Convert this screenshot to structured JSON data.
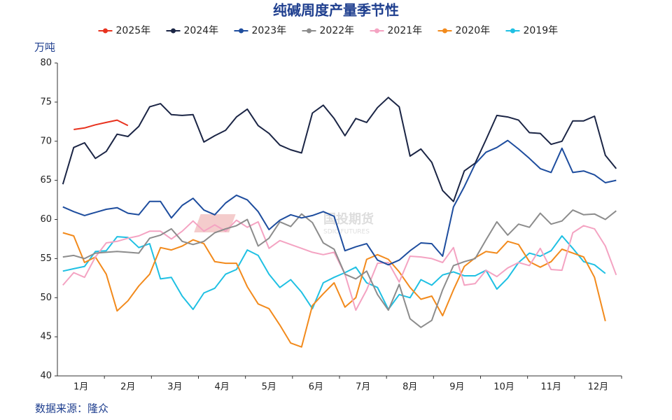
{
  "chart_data": {
    "type": "line",
    "title": "纯碱周度产量季节性",
    "y_label": "万吨",
    "source": "数据来源：隆众",
    "watermark": "国投期货",
    "watermark_sub": "SDIC FUTURES",
    "categories": [
      "1月",
      "2月",
      "3月",
      "4月",
      "5月",
      "6月",
      "7月",
      "8月",
      "9月",
      "10月",
      "11月",
      "12月"
    ],
    "x": [
      1,
      2,
      3,
      4,
      5,
      6,
      7,
      8,
      9,
      10,
      11,
      12,
      13,
      14,
      15,
      16,
      17,
      18,
      19,
      20,
      21,
      22,
      23,
      24,
      25,
      26,
      27,
      28,
      29,
      30,
      31,
      32,
      33,
      34,
      35,
      36,
      37,
      38,
      39,
      40,
      41,
      42,
      43,
      44,
      45,
      46,
      47,
      48,
      49,
      50,
      51,
      52
    ],
    "xlim": [
      0.5,
      52.5
    ],
    "ylim": [
      40,
      80
    ],
    "yticks": [
      40,
      45,
      50,
      55,
      60,
      65,
      70,
      75,
      80
    ],
    "series": [
      {
        "name": "2025年",
        "color": "#e8321e",
        "values": [
          null,
          71.5,
          71.7,
          72.1,
          72.4,
          72.7,
          72.0,
          null,
          null,
          null,
          null,
          null,
          null,
          null,
          null,
          null,
          null,
          null,
          null,
          null,
          null,
          null,
          null,
          null,
          null,
          null,
          null,
          null,
          null,
          null,
          null,
          null,
          null,
          null,
          null,
          null,
          null,
          null,
          null,
          null,
          null,
          null,
          null,
          null,
          null,
          null,
          null,
          null,
          null,
          null,
          null,
          null
        ]
      },
      {
        "name": "2024年",
        "color": "#1b2545",
        "values": [
          64.5,
          69.2,
          69.8,
          67.8,
          68.7,
          70.9,
          70.6,
          71.9,
          74.4,
          74.8,
          73.4,
          73.3,
          73.4,
          69.9,
          70.7,
          71.4,
          73.1,
          74.1,
          72.0,
          71.0,
          69.5,
          68.9,
          68.5,
          73.6,
          74.6,
          72.9,
          70.7,
          72.9,
          72.4,
          74.3,
          75.6,
          74.4,
          68.1,
          69.0,
          67.3,
          63.7,
          62.3,
          66.2,
          67.2,
          70.2,
          73.3,
          73.1,
          72.7,
          71.1,
          71.0,
          69.6,
          70.0,
          72.6,
          72.6,
          73.2,
          68.2,
          66.5
        ]
      },
      {
        "name": "2023年",
        "color": "#1e4d9e",
        "values": [
          61.6,
          61.0,
          60.5,
          60.9,
          61.3,
          61.5,
          60.8,
          60.6,
          62.3,
          62.3,
          60.2,
          61.8,
          62.7,
          61.2,
          60.6,
          62.1,
          63.1,
          62.5,
          61.0,
          58.7,
          59.9,
          60.6,
          60.2,
          60.5,
          61.0,
          60.4,
          56.0,
          56.5,
          56.9,
          54.8,
          54.2,
          54.8,
          56.0,
          57.0,
          56.9,
          55.3,
          61.6,
          64.2,
          67.1,
          68.6,
          69.2,
          70.1,
          69.0,
          67.8,
          66.5,
          66.0,
          69.1,
          66.0,
          66.2,
          65.7,
          64.7,
          65.0
        ]
      },
      {
        "name": "2022年",
        "color": "#8c8c8c",
        "values": [
          55.2,
          55.4,
          55.0,
          55.7,
          55.8,
          55.9,
          55.8,
          55.7,
          57.6,
          58.0,
          58.8,
          57.2,
          56.8,
          57.2,
          58.3,
          58.8,
          59.2,
          60.0,
          56.6,
          57.6,
          59.7,
          59.1,
          60.7,
          59.6,
          57.0,
          56.2,
          53.0,
          52.4,
          53.4,
          50.4,
          48.4,
          51.7,
          47.3,
          46.2,
          47.1,
          51.0,
          54.1,
          54.6,
          55.0,
          57.4,
          59.7,
          58.0,
          59.4,
          59.0,
          60.8,
          59.4,
          59.8,
          61.2,
          60.6,
          60.7,
          60.0,
          61.1
        ]
      },
      {
        "name": "2021年",
        "color": "#f4a3c2",
        "values": [
          51.6,
          53.2,
          52.6,
          55.2,
          57.0,
          57.2,
          57.6,
          57.9,
          58.5,
          58.5,
          57.5,
          58.5,
          59.8,
          58.5,
          59.3,
          58.5,
          59.9,
          59.0,
          59.7,
          56.3,
          57.3,
          56.8,
          56.3,
          55.8,
          55.5,
          55.8,
          53.0,
          48.4,
          51.0,
          54.4,
          54.5,
          52.0,
          55.3,
          55.2,
          55.0,
          54.5,
          56.4,
          51.6,
          51.8,
          53.5,
          52.7,
          53.8,
          54.5,
          54.1,
          56.3,
          53.6,
          53.5,
          58.3,
          59.2,
          58.8,
          56.6,
          52.9
        ]
      },
      {
        "name": "2020年",
        "color": "#f28a1c",
        "values": [
          58.3,
          57.9,
          54.5,
          55.2,
          53.0,
          48.3,
          49.6,
          51.5,
          53.0,
          56.4,
          56.1,
          56.6,
          57.4,
          56.9,
          54.6,
          54.4,
          54.4,
          51.4,
          49.2,
          48.6,
          46.5,
          44.2,
          43.7,
          49.0,
          50.5,
          51.9,
          48.8,
          50.0,
          54.9,
          55.5,
          54.9,
          53.3,
          51.3,
          49.8,
          50.2,
          47.7,
          51.0,
          54.0,
          55.1,
          55.9,
          55.7,
          57.2,
          56.8,
          54.6,
          53.9,
          54.6,
          56.2,
          55.7,
          55.2,
          52.6,
          47.0,
          null
        ]
      },
      {
        "name": "2019年",
        "color": "#1fc0e3",
        "values": [
          53.4,
          53.7,
          54.0,
          55.9,
          56.0,
          57.8,
          57.7,
          56.4,
          56.9,
          52.4,
          52.6,
          50.2,
          48.5,
          50.6,
          51.2,
          53.0,
          53.6,
          56.1,
          55.4,
          53.0,
          51.3,
          52.3,
          50.7,
          48.6,
          51.9,
          52.6,
          53.2,
          53.9,
          51.9,
          51.3,
          48.5,
          50.4,
          50.0,
          52.3,
          51.6,
          52.9,
          53.3,
          52.8,
          52.8,
          53.5,
          51.1,
          52.5,
          54.5,
          55.7,
          55.3,
          56.0,
          57.9,
          56.3,
          54.6,
          54.2,
          53.1,
          null
        ]
      }
    ]
  }
}
